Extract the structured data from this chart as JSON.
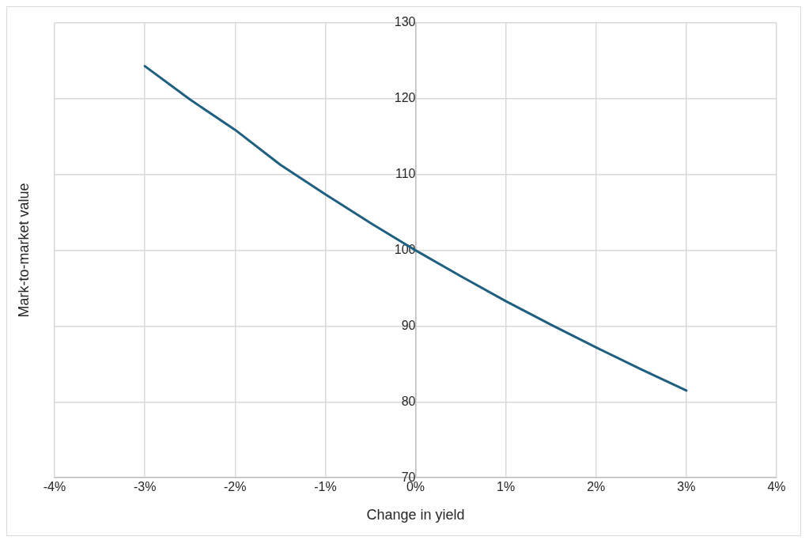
{
  "chart_data": {
    "type": "line",
    "xlabel": "Change in yield",
    "ylabel": "Mark-to-market value",
    "series": [
      {
        "color": "#1f5f80",
        "x": [
          -3,
          -2.5,
          -2,
          -1.5,
          -1,
          -0.5,
          0,
          0.5,
          1,
          1.5,
          2,
          2.5,
          3
        ],
        "values": [
          124.3,
          119.9,
          115.9,
          111.3,
          107.4,
          103.6,
          100,
          96.6,
          93.3,
          90.2,
          87.2,
          84.3,
          81.5
        ]
      }
    ],
    "xlim": [
      -4,
      4
    ],
    "xticks": [
      {
        "value": -4,
        "label": "-4%"
      },
      {
        "value": -3,
        "label": "-3%"
      },
      {
        "value": -2,
        "label": "-2%"
      },
      {
        "value": -1,
        "label": "-1%"
      },
      {
        "value": 0,
        "label": "0%"
      },
      {
        "value": 1,
        "label": "1%"
      },
      {
        "value": 2,
        "label": "2%"
      },
      {
        "value": 3,
        "label": "3%"
      },
      {
        "value": 4,
        "label": "4%"
      }
    ],
    "ylim": [
      70,
      130
    ],
    "yticks": [
      70,
      80,
      90,
      100,
      110,
      120,
      130
    ],
    "grid": true,
    "legend": false,
    "marker": "none",
    "line_style": "solid"
  }
}
